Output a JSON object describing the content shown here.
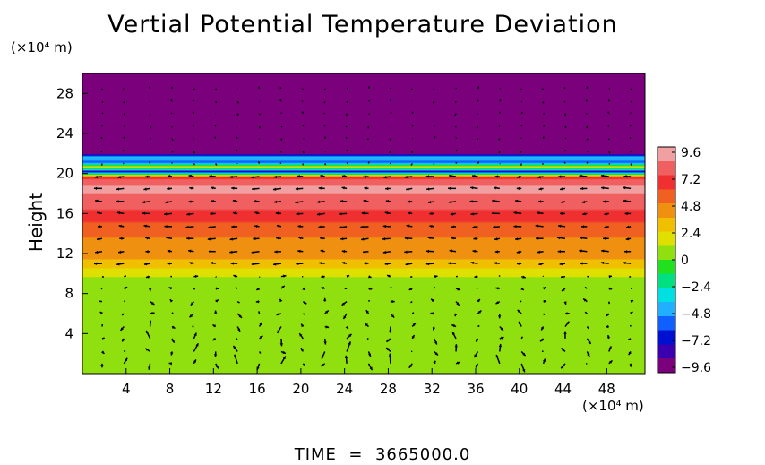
{
  "chart_data": {
    "type": "heatmap",
    "title": "Vertial Potential Temperature Deviation",
    "ylabel": "Height",
    "y_unit": "(×10⁴ m)",
    "x_unit": "(×10⁴ m)",
    "footer_label": "TIME",
    "footer_value": "3665000.0",
    "xlim": [
      0,
      51.5
    ],
    "ylim": [
      0,
      30
    ],
    "x_ticks": [
      "4",
      "8",
      "12",
      "16",
      "20",
      "24",
      "28",
      "32",
      "36",
      "40",
      "44",
      "48"
    ],
    "y_ticks": [
      "4",
      "8",
      "12",
      "16",
      "20",
      "24",
      "28"
    ],
    "colorbar": {
      "ticks": [
        "9.6",
        "7.2",
        "4.8",
        "2.4",
        "0",
        "−2.4",
        "−4.8",
        "−7.2",
        "−9.6"
      ],
      "range": [
        -9.6,
        9.6
      ],
      "colors": [
        "#7b007b",
        "#3a00b0",
        "#0010d0",
        "#1060ff",
        "#20b0ff",
        "#00e0e0",
        "#00e080",
        "#20e020",
        "#90e010",
        "#e0e000",
        "#f0c000",
        "#f09010",
        "#f06020",
        "#f03030",
        "#f06060",
        "#f0a0a0"
      ]
    },
    "field_profile": [
      {
        "y": 0,
        "value": 0.2
      },
      {
        "y": 9,
        "value": 0.4
      },
      {
        "y": 10,
        "value": 1.6
      },
      {
        "y": 11.5,
        "value": 3.6
      },
      {
        "y": 14,
        "value": 5.0
      },
      {
        "y": 16.5,
        "value": 7.3
      },
      {
        "y": 18.5,
        "value": 8.8
      },
      {
        "y": 19.6,
        "value": 7.0
      },
      {
        "y": 20.2,
        "value": -7.5
      },
      {
        "y": 20.6,
        "value": 2.5
      },
      {
        "y": 21.1,
        "value": -5.5
      },
      {
        "y": 21.6,
        "value": -3.5
      },
      {
        "y": 22,
        "value": -9.6
      },
      {
        "y": 30,
        "value": -9.6
      }
    ],
    "wind_columns": [
      {
        "x": 1.8,
        "amp": 0.35
      },
      {
        "x": 3.8,
        "amp": 0.55
      },
      {
        "x": 6.2,
        "amp": 1.0
      },
      {
        "x": 8.2,
        "amp": 0.5
      },
      {
        "x": 10.2,
        "amp": 0.85
      },
      {
        "x": 12.2,
        "amp": 0.55
      },
      {
        "x": 14.2,
        "amp": 0.8
      },
      {
        "x": 16.2,
        "amp": 0.6
      },
      {
        "x": 18.2,
        "amp": 1.0
      },
      {
        "x": 20.2,
        "amp": 0.6
      },
      {
        "x": 22.2,
        "amp": 0.8
      },
      {
        "x": 24.2,
        "amp": 1.0
      },
      {
        "x": 26.2,
        "amp": 0.6
      },
      {
        "x": 28.2,
        "amp": 0.9
      },
      {
        "x": 30.2,
        "amp": 0.5
      },
      {
        "x": 32.2,
        "amp": 0.7
      },
      {
        "x": 34.2,
        "amp": 0.85
      },
      {
        "x": 36.2,
        "amp": 0.6
      },
      {
        "x": 38.2,
        "amp": 0.85
      },
      {
        "x": 40.2,
        "amp": 0.75
      },
      {
        "x": 42.2,
        "amp": 0.5
      },
      {
        "x": 44.2,
        "amp": 0.9
      },
      {
        "x": 46.2,
        "amp": 0.65
      },
      {
        "x": 48.2,
        "amp": 0.55
      },
      {
        "x": 50.2,
        "amp": 0.35
      }
    ],
    "wind_levels": [
      1,
      2.2,
      3.5,
      4.7,
      6,
      7.2,
      8.5,
      9.7,
      11,
      12.2,
      13.5,
      14.7,
      16,
      17.2,
      18.5,
      19.7,
      21,
      22.2,
      23.5,
      24.7,
      26,
      27.2,
      28.5
    ]
  }
}
